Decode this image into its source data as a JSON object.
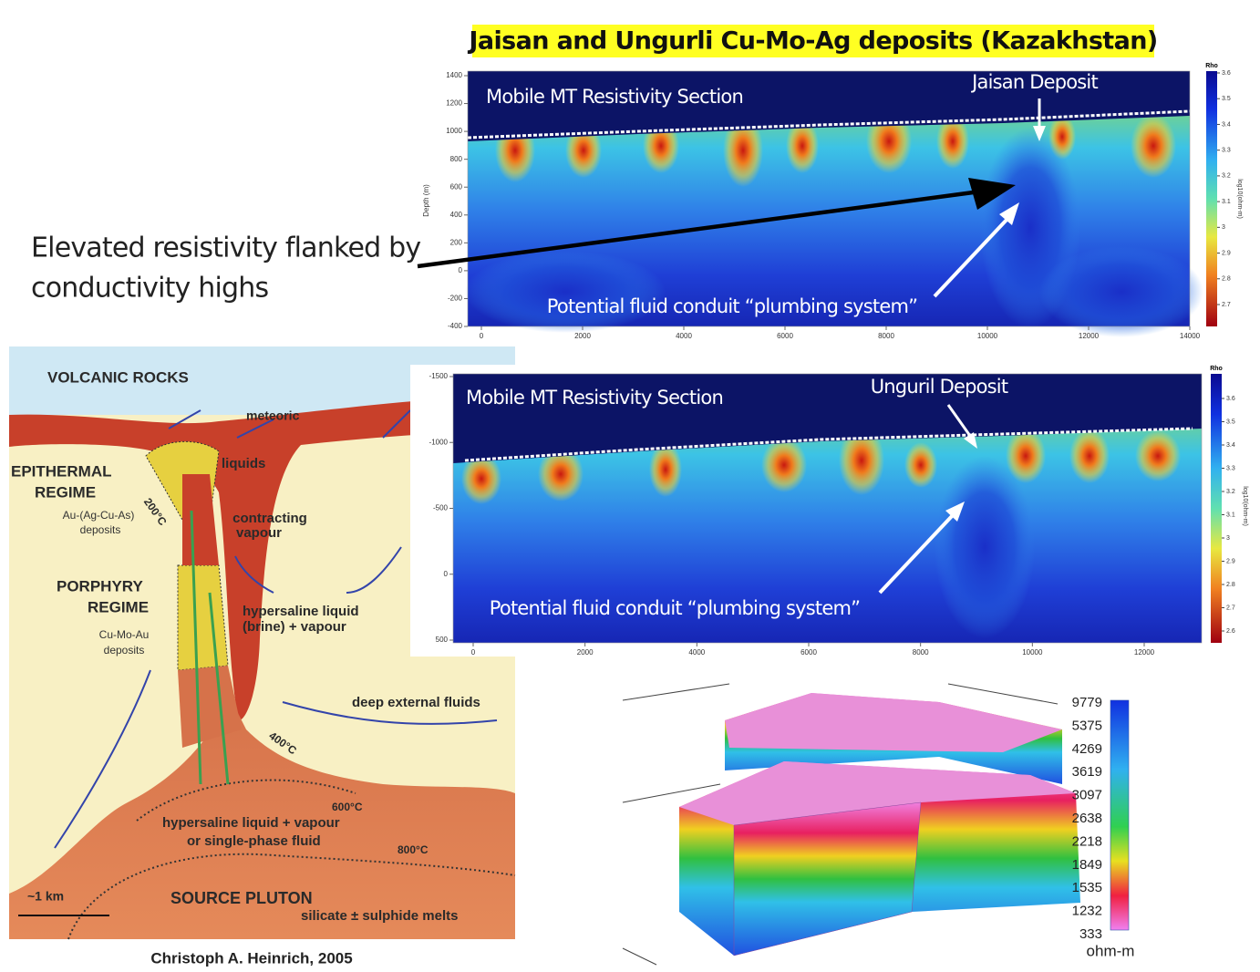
{
  "title": "Jaisan and Ungurli Cu-Mo-Ag deposits (Kazakhstan)",
  "annotation": [
    "Elevated resistivity flanked by",
    "conductivity highs"
  ],
  "section_top": {
    "label": "Mobile MT Resistivity Section",
    "deposit": "Jaisan Deposit",
    "conduit": "Potential fluid conduit “plumbing system”",
    "y_axis_label": "Depth (m)",
    "yticks": [
      1400,
      1200,
      1000,
      800,
      600,
      400,
      200,
      0,
      -200,
      -400
    ],
    "xticks": [
      0,
      2000,
      4000,
      6000,
      8000,
      10000,
      12000,
      14000
    ],
    "colorbar_title": "Rho",
    "colorbar_unit": "log10(ohm-m)",
    "colorbar_ticks": [
      3.6,
      3.5,
      3.4,
      3.3,
      3.2,
      3.1,
      3,
      2.9,
      2.8,
      2.7
    ]
  },
  "section_bottom": {
    "label": "Mobile MT Resistivity Section",
    "deposit": "Unguril Deposit",
    "conduit": "Potential fluid conduit “plumbing system”",
    "yticks": [
      -1500,
      -1000,
      -500,
      0,
      500
    ],
    "xticks": [
      0,
      2000,
      4000,
      6000,
      8000,
      10000,
      12000
    ],
    "colorbar_title": "Rho",
    "colorbar_unit": "log10(ohm-m)",
    "colorbar_ticks": [
      3.6,
      3.5,
      3.4,
      3.3,
      3.2,
      3.1,
      3,
      2.9,
      2.8,
      2.7,
      2.6
    ]
  },
  "diagram": {
    "volcanic": "VOLCANIC ROCKS",
    "meteoric": "meteoric",
    "epithermal": [
      "EPITHERMAL",
      "REGIME"
    ],
    "epi_deposits": [
      "Au-(Ag-Cu-As)",
      "deposits"
    ],
    "t200": "200°C",
    "liquids": "liquids",
    "contracting": [
      "contracting",
      "vapour"
    ],
    "porphyry": [
      "PORPHYRY",
      "REGIME"
    ],
    "por_deposits": [
      "Cu-Mo-Au",
      "deposits"
    ],
    "hypersaline": [
      "hypersaline liquid",
      "(brine) + vapour"
    ],
    "deep": "deep external fluids",
    "t400": "400°C",
    "t600": "600°C",
    "single_phase": [
      "hypersaline liquid + vapour",
      "or single-phase fluid"
    ],
    "t800": "800°C",
    "scale": "~1 km",
    "pluton": "SOURCE PLUTON",
    "melts": "silicate ± sulphide melts"
  },
  "credit": "Christoph A. Heinrich, 2005",
  "block_3d": {
    "colorbar_labels": [
      9779,
      5375,
      4269,
      3619,
      3097,
      2638,
      2218,
      1849,
      1535,
      1232,
      333
    ],
    "unit": "ohm-m"
  }
}
